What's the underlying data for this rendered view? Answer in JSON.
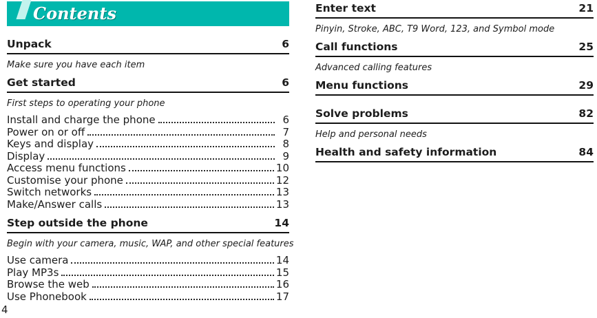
{
  "header": {
    "title": "Contents"
  },
  "footer": {
    "page_number": "4"
  },
  "colors": {
    "banner_teal": "#00b7ad",
    "banner_accent": "#c3f3ee",
    "text": "#1c1c1c"
  },
  "left": {
    "sections": [
      {
        "title": "Unpack",
        "page": "6",
        "subtitle": "Make sure you have each item"
      },
      {
        "title": "Get started",
        "page": "6",
        "subtitle": "First steps to operating your phone",
        "entries": [
          {
            "label": "Install and charge the phone",
            "page": "6"
          },
          {
            "label": "Power on or off",
            "page": "7"
          },
          {
            "label": "Keys and display",
            "page": "8"
          },
          {
            "label": "Display",
            "page": "9"
          },
          {
            "label": "Access menu functions",
            "page": "10"
          },
          {
            "label": "Customise your phone",
            "page": "12"
          },
          {
            "label": "Switch networks",
            "page": "13"
          },
          {
            "label": "Make/Answer calls",
            "page": "13"
          }
        ]
      },
      {
        "title": "Step outside the phone",
        "page": "14",
        "subtitle": "Begin with your camera, music, WAP, and other special features",
        "entries": [
          {
            "label": "Use camera",
            "page": "14"
          },
          {
            "label": "Play MP3s",
            "page": "15"
          },
          {
            "label": "Browse the web",
            "page": "16"
          },
          {
            "label": "Use Phonebook",
            "page": "17"
          }
        ]
      }
    ]
  },
  "right": {
    "sections": [
      {
        "title": "Enter text",
        "page": "21",
        "subtitle": "Pinyin, Stroke, ABC, T9 Word, 123, and Symbol mode"
      },
      {
        "title": "Call functions",
        "page": "25",
        "subtitle": "Advanced calling features"
      },
      {
        "title": "Menu functions",
        "page": "29"
      },
      {
        "title": "Solve problems",
        "page": "82",
        "subtitle": "Help and personal needs"
      },
      {
        "title": "Health and safety information",
        "page": "84"
      }
    ]
  }
}
